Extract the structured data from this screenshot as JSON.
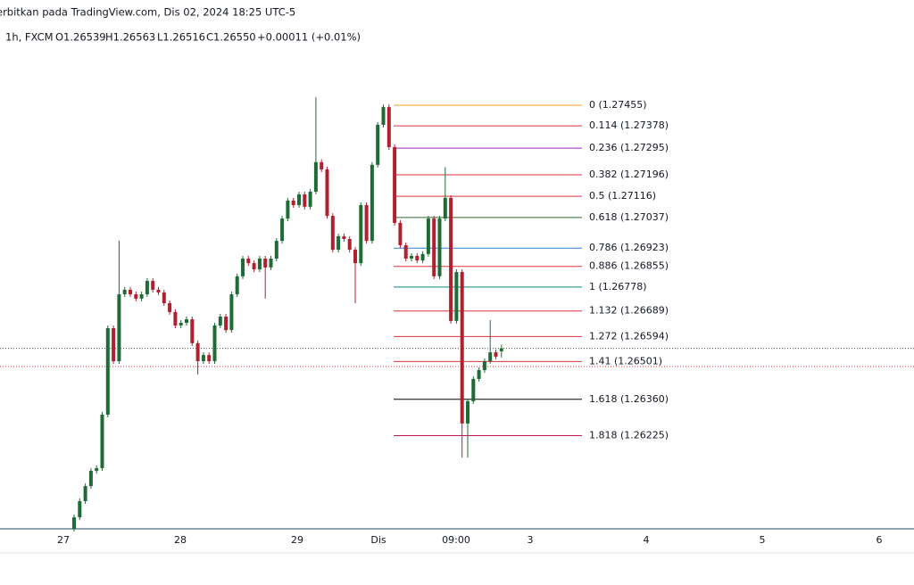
{
  "header": {
    "published": "erbitkan pada TradingView.com, Dis 02, 2024 18:25 UTC-5",
    "interval": "1h, FXCM",
    "open": "O1.26539",
    "high": "H1.26563",
    "low": "L1.26516",
    "close": "C1.26550",
    "change": "+0.00011 (+0.01%)"
  },
  "chart_data": {
    "type": "candlestick",
    "up_color": "#1e6b35",
    "down_color": "#b0202e",
    "ylim": [
      1.25878,
      1.27674
    ],
    "x_labels": [
      "27",
      "28",
      "29",
      "Dis",
      "09:00",
      "3",
      "4",
      "5",
      "6"
    ],
    "open": [
      1.25878,
      1.25921,
      1.25981,
      1.26037,
      1.26094,
      1.26104,
      1.26303,
      1.26625,
      1.26502,
      1.26751,
      1.26768,
      1.26751,
      1.26735,
      1.26751,
      1.26801,
      1.26768,
      1.26758,
      1.26718,
      1.26685,
      1.26635,
      1.26645,
      1.26658,
      1.26569,
      1.26502,
      1.26525,
      1.26502,
      1.26635,
      1.26668,
      1.26618,
      1.26751,
      1.26818,
      1.26884,
      1.26867,
      1.26844,
      1.26884,
      1.26851,
      1.26884,
      1.2695,
      1.27033,
      1.271,
      1.27083,
      1.27123,
      1.27077,
      1.27133,
      1.27243,
      1.27216,
      1.27043,
      1.26917,
      1.26967,
      1.26957,
      1.26917,
      1.26867,
      1.27083,
      1.2695,
      1.27233,
      1.27382,
      1.27448,
      1.27299,
      1.27017,
      1.26934,
      1.26884,
      1.26894,
      1.26877,
      1.26901,
      1.27033,
      1.26818,
      1.27033,
      1.2711,
      1.26652,
      1.26834,
      1.2627,
      1.26353,
      1.26436,
      1.26469,
      1.26502,
      1.26535,
      1.26539
    ],
    "high": [
      1.25931,
      1.25991,
      1.26047,
      1.26104,
      1.26114,
      1.26313,
      1.26635,
      1.26635,
      1.26951,
      1.26778,
      1.26778,
      1.26761,
      1.26761,
      1.26811,
      1.26811,
      1.26778,
      1.26768,
      1.26728,
      1.26695,
      1.26655,
      1.26668,
      1.26668,
      1.26579,
      1.26535,
      1.26535,
      1.26645,
      1.26678,
      1.26678,
      1.26761,
      1.26828,
      1.26894,
      1.26894,
      1.26877,
      1.26894,
      1.26894,
      1.26894,
      1.2696,
      1.27043,
      1.2711,
      1.2711,
      1.27133,
      1.27133,
      1.27143,
      1.27485,
      1.27253,
      1.27226,
      1.27053,
      1.26977,
      1.26977,
      1.26967,
      1.26927,
      1.27093,
      1.27093,
      1.27243,
      1.27392,
      1.27458,
      1.27458,
      1.27309,
      1.27027,
      1.26944,
      1.26904,
      1.26904,
      1.26911,
      1.27043,
      1.27043,
      1.27043,
      1.27225,
      1.2712,
      1.26844,
      1.26844,
      1.26363,
      1.26446,
      1.26479,
      1.26512,
      1.26655,
      1.26545,
      1.26563
    ],
    "low": [
      1.25868,
      1.25911,
      1.25971,
      1.26027,
      1.26084,
      1.26094,
      1.26293,
      1.26492,
      1.26492,
      1.26741,
      1.26741,
      1.26725,
      1.26725,
      1.26741,
      1.26758,
      1.26748,
      1.26708,
      1.26675,
      1.26625,
      1.26625,
      1.26635,
      1.26559,
      1.26453,
      1.26492,
      1.26492,
      1.26492,
      1.26625,
      1.26608,
      1.26608,
      1.26741,
      1.26808,
      1.26857,
      1.26834,
      1.26834,
      1.26735,
      1.26841,
      1.26874,
      1.2694,
      1.27023,
      1.27073,
      1.27073,
      1.27067,
      1.27067,
      1.27123,
      1.27206,
      1.27033,
      1.26907,
      1.26907,
      1.26947,
      1.26907,
      1.26718,
      1.26857,
      1.2694,
      1.2694,
      1.27223,
      1.27372,
      1.27289,
      1.27007,
      1.26924,
      1.26874,
      1.26874,
      1.26867,
      1.26867,
      1.26891,
      1.26808,
      1.26808,
      1.27023,
      1.26642,
      1.26642,
      1.26143,
      1.26143,
      1.26343,
      1.26426,
      1.26459,
      1.26492,
      1.26509,
      1.26516
    ],
    "close": [
      1.25921,
      1.25981,
      1.26037,
      1.26094,
      1.26104,
      1.26303,
      1.26625,
      1.26502,
      1.26751,
      1.26768,
      1.26751,
      1.26735,
      1.26751,
      1.26801,
      1.26768,
      1.26758,
      1.26718,
      1.26685,
      1.26635,
      1.26645,
      1.26658,
      1.26569,
      1.26502,
      1.26525,
      1.26502,
      1.26635,
      1.26668,
      1.26618,
      1.26751,
      1.26818,
      1.26884,
      1.26867,
      1.26844,
      1.26884,
      1.26851,
      1.26884,
      1.2695,
      1.27033,
      1.271,
      1.27083,
      1.27123,
      1.27077,
      1.27133,
      1.27243,
      1.27216,
      1.27043,
      1.26917,
      1.26967,
      1.26957,
      1.26917,
      1.26867,
      1.27083,
      1.2695,
      1.27233,
      1.27382,
      1.27448,
      1.27299,
      1.27017,
      1.26934,
      1.26884,
      1.26894,
      1.26877,
      1.26901,
      1.27033,
      1.26818,
      1.27033,
      1.2711,
      1.26652,
      1.26834,
      1.2627,
      1.26353,
      1.26436,
      1.26469,
      1.26502,
      1.26535,
      1.26519,
      1.2655
    ],
    "reference_line": {
      "value": 1.26482,
      "color": "#e0303e"
    },
    "fib_levels": [
      {
        "label": "0 (1.27455)",
        "value": 1.27455,
        "color": "#f59c1a"
      },
      {
        "label": "0.114 (1.27378)",
        "value": 1.27378,
        "color": "#e0303e"
      },
      {
        "label": "0.236 (1.27295)",
        "value": 1.27295,
        "color": "#9c27b0"
      },
      {
        "label": "0.382 (1.27196)",
        "value": 1.27196,
        "color": "#e0303e"
      },
      {
        "label": "0.5 (1.27116)",
        "value": 1.27116,
        "color": "#e0303e"
      },
      {
        "label": "0.618 (1.27037)",
        "value": 1.27037,
        "color": "#2e6b2e"
      },
      {
        "label": "0.786 (1.26923)",
        "value": 1.26923,
        "color": "#2f7fd6"
      },
      {
        "label": "0.886 (1.26855)",
        "value": 1.26855,
        "color": "#e0303e"
      },
      {
        "label": "1 (1.26778)",
        "value": 1.26778,
        "color": "#0a8a8a"
      },
      {
        "label": "1.132 (1.26689)",
        "value": 1.26689,
        "color": "#e0303e"
      },
      {
        "label": "1.272 (1.26594)",
        "value": 1.26594,
        "color": "#e0303e"
      },
      {
        "label": "1.41 (1.26501)",
        "value": 1.26501,
        "color": "#e0303e"
      },
      {
        "label": "1.618 (1.26360)",
        "value": 1.2636,
        "color": "#000000"
      },
      {
        "label": "1.818 (1.26225)",
        "value": 1.26225,
        "color": "#c2185b"
      }
    ]
  }
}
